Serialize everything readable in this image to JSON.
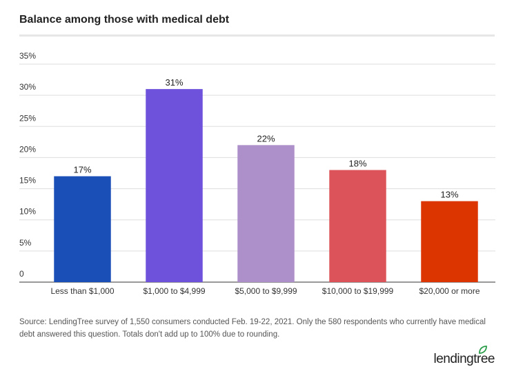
{
  "chart_data": {
    "type": "bar",
    "title": "Balance among those with medical debt",
    "categories": [
      "Less than $1,000",
      "$1,000 to $4,999",
      "$5,000 to $9,999",
      "$10,000 to $19,999",
      "$20,000 or more"
    ],
    "values": [
      17,
      31,
      22,
      18,
      13
    ],
    "value_labels": [
      "17%",
      "31%",
      "22%",
      "18%",
      "13%"
    ],
    "colors": [
      "#1a4fb8",
      "#6e52dc",
      "#ad8fc9",
      "#dc535a",
      "#dc3500"
    ],
    "ylim": [
      0,
      35
    ],
    "yticks": [
      0,
      {
        "value": 5,
        "label": "5%"
      },
      {
        "value": 10,
        "label": "10%"
      },
      {
        "value": 15,
        "label": "15%"
      },
      {
        "value": 20,
        "label": "20%"
      },
      {
        "value": 25,
        "label": "25%"
      },
      {
        "value": 30,
        "label": "30%"
      },
      {
        "value": 35,
        "label": "35%"
      }
    ],
    "grid": true,
    "source": "Source: LendingTree survey of 1,550 consumers conducted Feb. 19-22, 2021. Only the 580 respondents who currently have medical debt answered this question. Totals don't add up to 100% due to rounding.",
    "logo": "lendingtree"
  }
}
